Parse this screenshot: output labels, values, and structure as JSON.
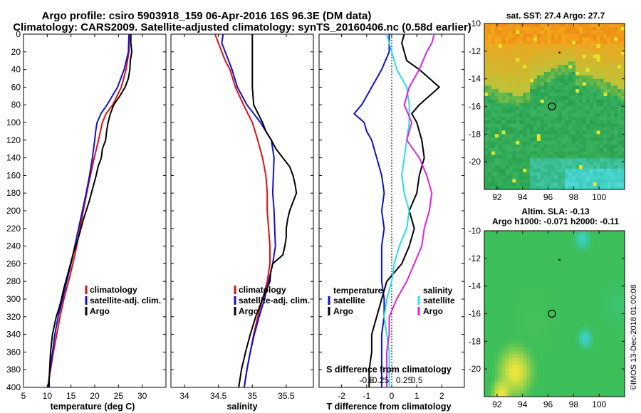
{
  "figure": {
    "title_line1": "Argo profile: csiro 5903918_159 06-Apr-2016 16S 96.3E (DM data)",
    "title_line2": "Climatology: CARS2009. Satellite-adjusted climatology: synTS_20160406.nc (0.58d earlier)",
    "watermark": "©IMOS 13-Dec-2018 01:00:08"
  },
  "colors": {
    "climatology": "#dd1111",
    "satellite": "#1111cc",
    "argo": "#000000",
    "sal_satellite": "#22e0e8",
    "sal_argo": "#dd22dd",
    "ref_line": "#000000"
  },
  "chart_data": [
    {
      "type": "line",
      "name": "temperature-profile",
      "xlabel": "temperature (deg C)",
      "ylabel": "",
      "xlim": [
        5,
        35
      ],
      "ylim": [
        400,
        0
      ],
      "xticks": [
        5,
        10,
        15,
        20,
        25,
        30
      ],
      "yticks": [
        0,
        20,
        40,
        60,
        80,
        100,
        120,
        140,
        160,
        180,
        200,
        220,
        240,
        260,
        280,
        300,
        320,
        340,
        360,
        380,
        400
      ],
      "legend": [
        "climatology",
        "satellite-adj. clim.",
        "Argo"
      ],
      "legend_position": "bottom-right",
      "series": [
        {
          "name": "climatology",
          "depth": [
            0,
            20,
            40,
            60,
            80,
            90,
            100,
            110,
            120,
            140,
            160,
            180,
            200,
            220,
            240,
            260,
            280,
            300,
            320,
            340,
            360,
            380,
            400
          ],
          "values": [
            27.3,
            27.2,
            26.6,
            25.6,
            23.8,
            22.4,
            21.6,
            21.2,
            20.8,
            19.9,
            19.1,
            18.3,
            17.6,
            16.9,
            16.2,
            15.4,
            14.5,
            13.5,
            12.7,
            12.0,
            11.3,
            10.7,
            10.1
          ]
        },
        {
          "name": "satellite-adj. clim.",
          "depth": [
            0,
            20,
            40,
            60,
            80,
            90,
            100,
            110,
            120,
            140,
            160,
            180,
            200,
            220,
            240,
            260,
            280,
            300,
            320,
            340,
            360,
            380,
            400
          ],
          "values": [
            27.2,
            27.1,
            26.2,
            24.8,
            22.6,
            21.3,
            20.5,
            20.2,
            20.0,
            19.5,
            18.9,
            18.2,
            17.4,
            16.6,
            15.8,
            15.0,
            14.1,
            13.2,
            12.3,
            11.6,
            11.1,
            10.6,
            10.2
          ]
        },
        {
          "name": "Argo",
          "depth": [
            0,
            10,
            20,
            30,
            40,
            50,
            60,
            70,
            80,
            90,
            100,
            110,
            120,
            130,
            140,
            150,
            160,
            170,
            180,
            190,
            200,
            210,
            220,
            230,
            240,
            250,
            260,
            270,
            280,
            290,
            300,
            310,
            320,
            330,
            340,
            350,
            360,
            370,
            380,
            390,
            400
          ],
          "values": [
            27.6,
            27.6,
            27.8,
            27.5,
            27.4,
            27.1,
            26.4,
            25.3,
            24.0,
            23.3,
            22.8,
            22.5,
            22.3,
            21.6,
            21.4,
            20.7,
            20.3,
            19.8,
            19.3,
            18.8,
            18.2,
            17.6,
            17.1,
            16.6,
            16.0,
            15.4,
            14.9,
            14.4,
            13.9,
            13.4,
            13.0,
            12.5,
            11.9,
            11.5,
            11.1,
            10.9,
            10.7,
            10.6,
            10.5,
            10.4,
            10.4
          ]
        }
      ]
    },
    {
      "type": "line",
      "name": "salinity-profile",
      "xlabel": "salinity",
      "ylabel": "",
      "xlim": [
        33.8,
        35.9
      ],
      "ylim": [
        400,
        0
      ],
      "xticks": [
        34,
        34.5,
        35,
        35.5
      ],
      "xticklabels": [
        "34",
        "34.5",
        "35",
        "35.5"
      ],
      "legend": [
        "climatology",
        "satellite-adj. clim.",
        "Argo"
      ],
      "legend_position": "bottom-right",
      "series": [
        {
          "name": "climatology",
          "depth": [
            0,
            10,
            20,
            30,
            40,
            60,
            80,
            100,
            120,
            140,
            160,
            180,
            200,
            220,
            240,
            260,
            280,
            300,
            320,
            340,
            360,
            380,
            400
          ],
          "values": [
            34.45,
            34.5,
            34.55,
            34.6,
            34.67,
            34.75,
            34.87,
            35.0,
            35.08,
            35.15,
            35.2,
            35.22,
            35.22,
            35.24,
            35.26,
            35.26,
            35.22,
            35.15,
            35.08,
            35.02,
            34.97,
            34.92,
            34.88
          ]
        },
        {
          "name": "satellite-adj. clim.",
          "depth": [
            0,
            10,
            20,
            30,
            40,
            60,
            80,
            100,
            120,
            140,
            160,
            180,
            200,
            220,
            240,
            260,
            280,
            300,
            320,
            340,
            360,
            380,
            400
          ],
          "values": [
            34.57,
            34.55,
            34.6,
            34.65,
            34.7,
            34.78,
            34.92,
            35.12,
            35.28,
            35.32,
            35.31,
            35.3,
            35.32,
            35.33,
            35.34,
            35.3,
            35.24,
            35.18,
            35.1,
            35.03,
            34.97,
            34.92,
            34.88
          ]
        },
        {
          "name": "Argo",
          "depth": [
            0,
            10,
            20,
            30,
            40,
            60,
            80,
            100,
            110,
            120,
            130,
            140,
            150,
            160,
            170,
            180,
            190,
            200,
            210,
            220,
            230,
            240,
            250,
            260,
            270,
            280,
            300,
            320,
            340,
            360,
            380,
            400
          ],
          "values": [
            35.0,
            35.0,
            35.0,
            35.0,
            35.0,
            35.0,
            35.02,
            35.15,
            35.2,
            35.28,
            35.35,
            35.45,
            35.55,
            35.6,
            35.63,
            35.65,
            35.6,
            35.55,
            35.52,
            35.5,
            35.5,
            35.48,
            35.45,
            35.3,
            35.27,
            35.26,
            35.15,
            35.05,
            34.97,
            34.9,
            34.84,
            34.8
          ]
        }
      ]
    },
    {
      "type": "line",
      "name": "difference-profile",
      "xlabel": "T difference from climatology",
      "xlabel2": "S difference from climatology",
      "xlim": [
        -2.9,
        2.9
      ],
      "ylim": [
        400,
        0
      ],
      "xticks": [
        -2,
        -1,
        0,
        1,
        2
      ],
      "xticklabels": [
        "-2",
        "-1",
        "0",
        "1",
        "2"
      ],
      "xticks2": [
        -1,
        -0.5,
        0.5,
        1
      ],
      "xticklabels2": [
        "-0.5",
        "-0.25",
        "0.25",
        "0.5"
      ],
      "legend_temperature_title": "temperature",
      "legend_salinity_title": "salinity",
      "legend": [
        "satellite",
        "Argo",
        "satellite",
        "Argo"
      ],
      "legend_position": "bottom",
      "series": [
        {
          "name": "T satellite",
          "depth": [
            0,
            20,
            40,
            60,
            80,
            90,
            100,
            110,
            120,
            140,
            160,
            180,
            200,
            220,
            240,
            260,
            280,
            300,
            320,
            340,
            360,
            380,
            400
          ],
          "values": [
            -0.1,
            -0.1,
            -0.4,
            -0.8,
            -1.2,
            -1.5,
            -1.1,
            -1.0,
            -0.8,
            -0.6,
            -0.4,
            -0.3,
            -0.4,
            -0.3,
            -0.4,
            -0.4,
            -0.4,
            -0.3,
            -0.3,
            -0.4,
            -0.4,
            -0.4,
            -0.4
          ]
        },
        {
          "name": "T Argo",
          "depth": [
            0,
            10,
            20,
            30,
            40,
            50,
            60,
            70,
            80,
            90,
            100,
            120,
            140,
            160,
            180,
            200,
            220,
            240,
            260,
            280,
            300,
            320,
            340,
            360,
            380,
            400
          ],
          "values": [
            0.5,
            0.4,
            0.5,
            0.6,
            1.1,
            1.5,
            1.9,
            1.5,
            1.1,
            0.8,
            1.0,
            1.2,
            1.3,
            1.1,
            1.0,
            0.7,
            0.9,
            0.7,
            0.4,
            -0.2,
            -0.4,
            -0.6,
            -0.8,
            -0.8,
            -0.9,
            -0.9
          ]
        },
        {
          "name": "S satellite",
          "depth": [
            0,
            10,
            20,
            40,
            60,
            80,
            100,
            120,
            140,
            160,
            180,
            200,
            220,
            240,
            260,
            280,
            300,
            320,
            340,
            360,
            380,
            400
          ],
          "values": [
            -0.2,
            -0.1,
            0.0,
            0.2,
            0.6,
            0.7,
            0.7,
            0.6,
            0.5,
            0.4,
            0.5,
            0.7,
            0.6,
            0.3,
            0.1,
            0.0,
            -0.2,
            -0.3,
            -0.2,
            -0.1,
            -0.1,
            -0.1
          ]
        },
        {
          "name": "S Argo",
          "depth": [
            0,
            10,
            20,
            40,
            60,
            80,
            100,
            120,
            140,
            160,
            180,
            200,
            220,
            240,
            260,
            280,
            300,
            320,
            340,
            360,
            380,
            400
          ],
          "values": [
            1.7,
            1.6,
            1.4,
            1.1,
            0.7,
            0.5,
            0.8,
            0.6,
            1.1,
            1.4,
            1.6,
            1.5,
            1.3,
            1.2,
            0.9,
            0.6,
            0.2,
            -0.1,
            -0.1,
            -0.2,
            -0.2,
            -0.2
          ]
        }
      ]
    },
    {
      "type": "heatmap",
      "name": "sst-map",
      "title": "sat. SST: 27.4 Argo: 27.7",
      "xlim": [
        91,
        102
      ],
      "ylim": [
        -22,
        -10
      ],
      "xticks": [
        92,
        94,
        96,
        98,
        100
      ],
      "yticks": [
        -10,
        -12,
        -14,
        -16,
        -18,
        -20
      ],
      "marker": {
        "lon": 96.3,
        "lat": -16
      }
    },
    {
      "type": "heatmap",
      "name": "sla-map",
      "title": "Altim. SLA: -0.13",
      "title2": "Argo h1000: -0.071 h2000: -0.11",
      "xlim": [
        91,
        102
      ],
      "ylim": [
        -22,
        -10
      ],
      "xticks": [
        92,
        94,
        96,
        98,
        100
      ],
      "yticks": [
        -10,
        -12,
        -14,
        -16,
        -18,
        -20
      ],
      "marker": {
        "lon": 96.3,
        "lat": -16
      }
    }
  ]
}
